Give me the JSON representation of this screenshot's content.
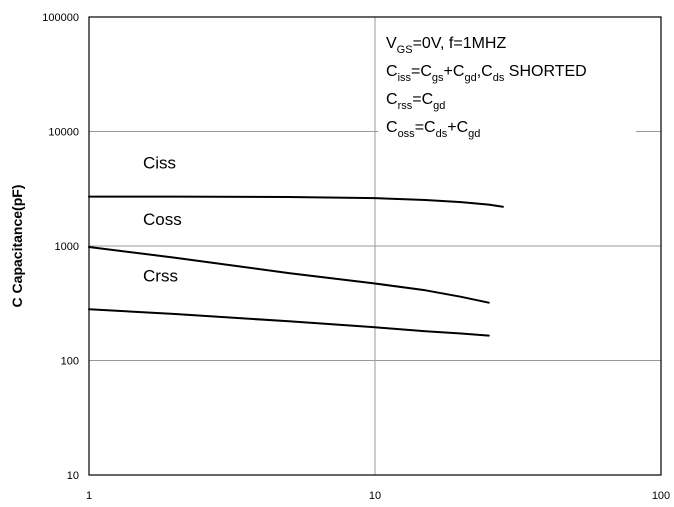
{
  "chart_data": {
    "type": "line",
    "xscale": "log",
    "yscale": "log",
    "xlim": [
      1,
      100
    ],
    "ylim": [
      10,
      100000
    ],
    "x_ticks": [
      "1",
      "10",
      "100"
    ],
    "y_ticks": [
      "10",
      "100",
      "1000",
      "10000",
      "100000"
    ],
    "xlabel": "",
    "ylabel": "C Capacitance(pF)",
    "grid": true,
    "series": [
      {
        "name": "Ciss",
        "x": [
          1,
          2,
          5,
          10,
          15,
          20,
          25,
          28
        ],
        "y": [
          2700,
          2700,
          2680,
          2620,
          2520,
          2420,
          2300,
          2200
        ]
      },
      {
        "name": "Coss",
        "x": [
          1,
          2,
          5,
          10,
          15,
          20,
          25
        ],
        "y": [
          980,
          790,
          580,
          470,
          410,
          360,
          320
        ]
      },
      {
        "name": "Crss",
        "x": [
          1,
          2,
          5,
          10,
          15,
          20,
          25
        ],
        "y": [
          280,
          255,
          220,
          195,
          180,
          172,
          165
        ]
      }
    ],
    "annotation_lines": [
      [
        {
          "t": "V"
        },
        {
          "t": "GS",
          "sub": true
        },
        {
          "t": "=0V, f=1MHZ"
        }
      ],
      [
        {
          "t": "C"
        },
        {
          "t": "iss",
          "sub": true
        },
        {
          "t": "=C"
        },
        {
          "t": "gs",
          "sub": true
        },
        {
          "t": "+C"
        },
        {
          "t": "gd",
          "sub": true
        },
        {
          "t": ",C"
        },
        {
          "t": "ds",
          "sub": true
        },
        {
          "t": " SHORTED"
        }
      ],
      [
        {
          "t": "C"
        },
        {
          "t": "rss",
          "sub": true
        },
        {
          "t": "=C"
        },
        {
          "t": "gd",
          "sub": true
        }
      ],
      [
        {
          "t": "C"
        },
        {
          "t": "oss",
          "sub": true
        },
        {
          "t": "=C"
        },
        {
          "t": "ds",
          "sub": true
        },
        {
          "t": "+C"
        },
        {
          "t": "gd",
          "sub": true
        }
      ]
    ]
  }
}
